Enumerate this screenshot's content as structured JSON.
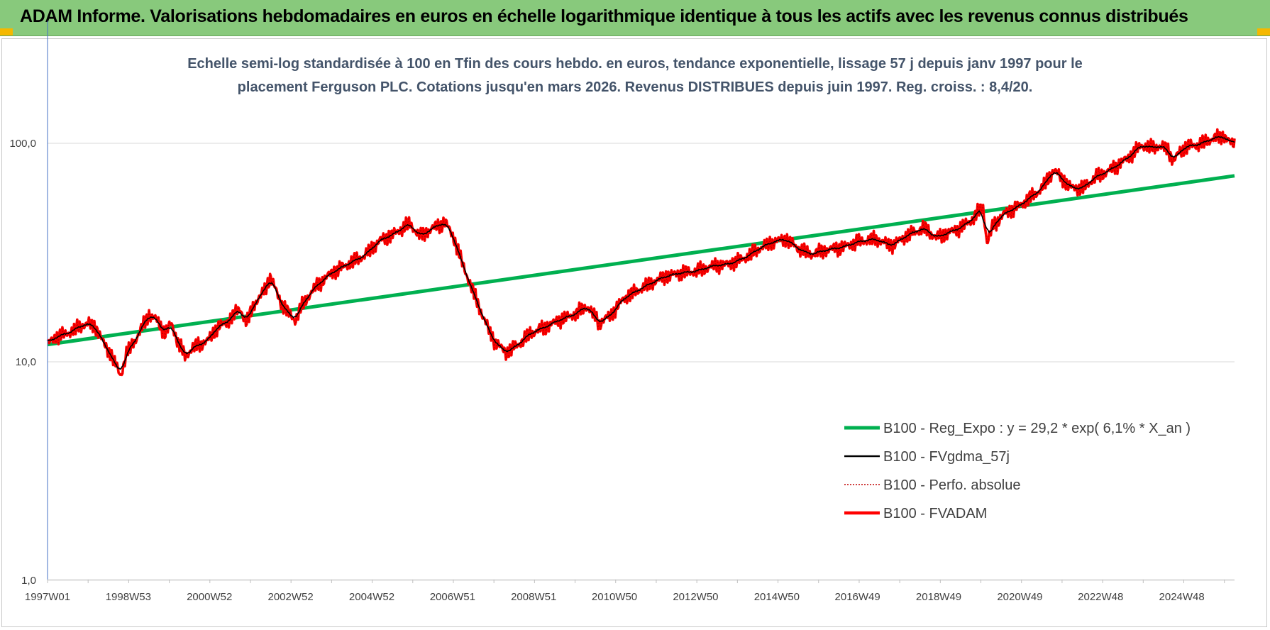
{
  "banner": {
    "title": "ADAM Informe. Valorisations hebdomadaires en euros en échelle logarithmique identique à tous les actifs avec les revenus connus distribués",
    "color": "#88c97c"
  },
  "chart_data": {
    "type": "line",
    "title": "Echelle semi-log standardisée à 100 en Tfin des cours hebdo. en euros, tendance exponentielle, lissage 57 j depuis janv 1997 pour le placement Ferguson PLC. Cotations jusqu'en mars 2026. Revenus DISTRIBUES depuis juin 1997. Reg. croiss. : 8,4/20.",
    "title_lines": [
      "Echelle semi-log standardisée à 100 en Tfin des cours hebdo. en euros, tendance exponentielle, lissage 57 j depuis janv 1997 pour le",
      "placement Ferguson PLC. Cotations jusqu'en mars 2026. Revenus DISTRIBUES depuis juin 1997. Reg. croiss. : 8,4/20."
    ],
    "y_scale": "log",
    "ylim": [
      1,
      200
    ],
    "yticks": [
      1,
      10,
      100
    ],
    "ytick_labels": [
      "1,0",
      "10,0",
      "100,0"
    ],
    "xlim": [
      1997.0,
      2026.25
    ],
    "xtick_labels": [
      "1997W01",
      "1998W53",
      "2000W52",
      "2002W52",
      "2004W52",
      "2006W51",
      "2008W51",
      "2010W50",
      "2012W50",
      "2014W50",
      "2016W49",
      "2018W49",
      "2020W49",
      "2022W48",
      "2024W48"
    ],
    "xtick_values": [
      1997.0,
      1998.99,
      2000.99,
      2002.99,
      2004.99,
      2006.98,
      2008.98,
      2010.97,
      2012.97,
      2014.97,
      2016.96,
      2018.96,
      2020.96,
      2022.95,
      2024.95
    ],
    "grid": "horizontal",
    "legend_position": "bottom-right",
    "series": [
      {
        "name": "B100 - Reg_Expo : y = 29,2 * exp( 6,1% *  X_an )",
        "color": "#00b050",
        "style": "thick",
        "x": [
          1997.0,
          2026.25
        ],
        "y": [
          12.0,
          71.0
        ]
      },
      {
        "name": "B100 - FVgdma_57j",
        "color": "#000000",
        "style": "thin",
        "derived": "smooth"
      },
      {
        "name": "B100 - Perfo. absolue",
        "color": "#c00000",
        "style": "dotted",
        "derived": "raw"
      },
      {
        "name": "B100 - FVADAM",
        "color": "#ff0000",
        "style": "thick",
        "x": [
          1997.0,
          1997.2,
          1997.5,
          1997.8,
          1998.0,
          1998.2,
          1998.4,
          1998.6,
          1998.8,
          1998.95,
          1999.1,
          1999.3,
          1999.5,
          1999.7,
          1999.9,
          2000.05,
          2000.2,
          2000.4,
          2000.55,
          2000.75,
          2000.95,
          2001.2,
          2001.4,
          2001.6,
          2001.75,
          2001.9,
          2002.1,
          2002.3,
          2002.5,
          2002.7,
          2002.9,
          2003.1,
          2003.3,
          2003.6,
          2004.0,
          2004.4,
          2004.8,
          2005.2,
          2005.6,
          2005.9,
          2006.2,
          2006.5,
          2006.8,
          2007.0,
          2007.2,
          2007.4,
          2007.6,
          2007.8,
          2008.0,
          2008.3,
          2008.6,
          2008.9,
          2009.1,
          2009.3,
          2009.6,
          2010.0,
          2010.3,
          2010.6,
          2010.9,
          2011.2,
          2011.5,
          2011.8,
          2012.2,
          2012.6,
          2013.0,
          2013.4,
          2013.8,
          2014.2,
          2014.6,
          2014.9,
          2015.2,
          2015.5,
          2015.8,
          2016.2,
          2016.6,
          2017.0,
          2017.4,
          2017.8,
          2018.2,
          2018.6,
          2018.9,
          2019.2,
          2019.5,
          2019.8,
          2020.05,
          2020.15,
          2020.3,
          2020.6,
          2020.9,
          2021.2,
          2021.5,
          2021.8,
          2022.0,
          2022.2,
          2022.5,
          2022.8,
          2023.1,
          2023.4,
          2023.7,
          2023.95,
          2024.2,
          2024.4,
          2024.6,
          2024.75,
          2024.9,
          2025.1,
          2025.4,
          2025.7,
          2026.0,
          2026.15,
          2026.25
        ],
        "y": [
          12.0,
          13.0,
          13.5,
          14.5,
          15.0,
          14.3,
          12.0,
          10.5,
          8.6,
          11.0,
          12.0,
          14.0,
          16.5,
          15.5,
          13.5,
          15.0,
          12.5,
          10.5,
          11.5,
          12.0,
          12.5,
          14.5,
          15.0,
          16.5,
          17.5,
          15.0,
          18.5,
          20.5,
          24.5,
          19.5,
          17.0,
          15.5,
          18.5,
          22.0,
          25.5,
          28.0,
          30.5,
          36.0,
          39.0,
          43.0,
          37.5,
          41.0,
          43.5,
          37.5,
          29.0,
          23.0,
          18.5,
          15.0,
          12.5,
          11.0,
          12.0,
          13.5,
          14.0,
          14.5,
          15.5,
          16.5,
          18.0,
          15.0,
          16.5,
          19.5,
          21.0,
          22.5,
          24.5,
          25.5,
          26.0,
          27.5,
          28.0,
          30.0,
          33.5,
          35.5,
          36.5,
          33.0,
          31.0,
          32.5,
          33.5,
          35.5,
          36.5,
          34.0,
          38.0,
          41.0,
          37.0,
          39.0,
          41.0,
          45.0,
          51.5,
          35.0,
          42.0,
          48.0,
          51.0,
          56.0,
          62.0,
          75.5,
          69.0,
          63.0,
          62.0,
          69.5,
          74.0,
          80.0,
          88.0,
          98.0,
          95.5,
          97.0,
          94.5,
          82.5,
          92.0,
          97.0,
          99.0,
          105.0,
          108.0,
          100.0,
          100.0
        ]
      }
    ]
  }
}
